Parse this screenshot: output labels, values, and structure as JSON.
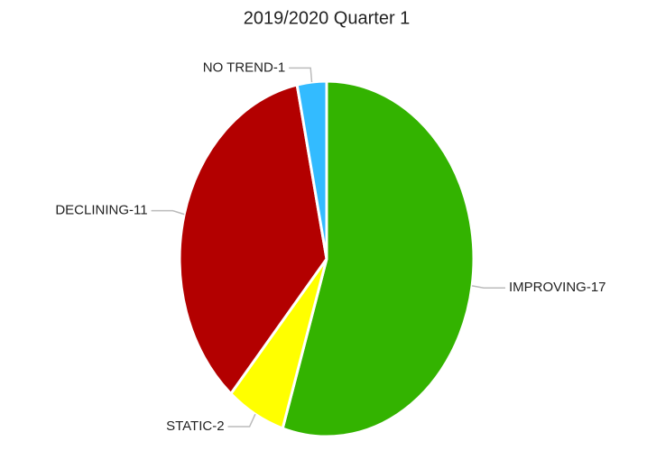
{
  "chart_data": {
    "type": "pie",
    "title": "2019/2020 Quarter 1",
    "values": [
      17,
      2,
      11,
      1
    ],
    "value_labels": [
      "IMPROVING-17",
      "STATIC-2",
      "DECLINING-11",
      "NO TREND-1"
    ],
    "colors": [
      "#33b300",
      "#ffff00",
      "#b30000",
      "#33bbff"
    ]
  }
}
